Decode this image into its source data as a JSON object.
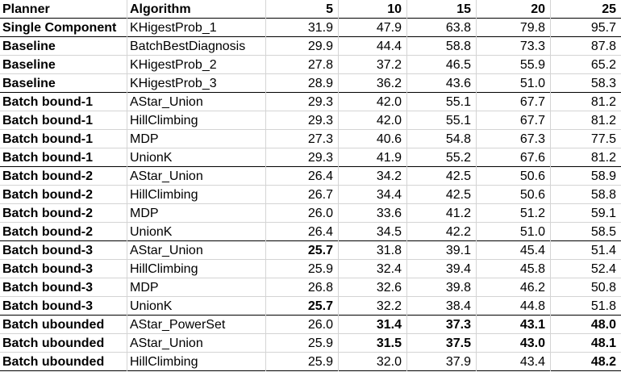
{
  "headers": [
    "Planner",
    "Algorithm",
    "5",
    "10",
    "15",
    "20",
    "25"
  ],
  "rows": [
    {
      "planner": "Single Component",
      "algorithm": "KHigestProb_1",
      "values": [
        "31.9",
        "47.9",
        "63.8",
        "79.8",
        "95.7"
      ],
      "bold": [
        false,
        false,
        false,
        false,
        false
      ]
    },
    {
      "planner": "Baseline",
      "algorithm": "BatchBestDiagnosis",
      "values": [
        "29.9",
        "44.4",
        "58.8",
        "73.3",
        "87.8"
      ],
      "bold": [
        false,
        false,
        false,
        false,
        false
      ]
    },
    {
      "planner": "Baseline",
      "algorithm": "KHigestProb_2",
      "values": [
        "27.8",
        "37.2",
        "46.5",
        "55.9",
        "65.2"
      ],
      "bold": [
        false,
        false,
        false,
        false,
        false
      ]
    },
    {
      "planner": "Baseline",
      "algorithm": "KHigestProb_3",
      "values": [
        "28.9",
        "36.2",
        "43.6",
        "51.0",
        "58.3"
      ],
      "bold": [
        false,
        false,
        false,
        false,
        false
      ]
    },
    {
      "planner": "Batch bound-1",
      "algorithm": "AStar_Union",
      "values": [
        "29.3",
        "42.0",
        "55.1",
        "67.7",
        "81.2"
      ],
      "bold": [
        false,
        false,
        false,
        false,
        false
      ]
    },
    {
      "planner": "Batch bound-1",
      "algorithm": "HillClimbing",
      "values": [
        "29.3",
        "42.0",
        "55.1",
        "67.7",
        "81.2"
      ],
      "bold": [
        false,
        false,
        false,
        false,
        false
      ]
    },
    {
      "planner": "Batch bound-1",
      "algorithm": "MDP",
      "values": [
        "27.3",
        "40.6",
        "54.8",
        "67.3",
        "77.5"
      ],
      "bold": [
        false,
        false,
        false,
        false,
        false
      ]
    },
    {
      "planner": "Batch bound-1",
      "algorithm": "UnionK",
      "values": [
        "29.3",
        "41.9",
        "55.2",
        "67.6",
        "81.2"
      ],
      "bold": [
        false,
        false,
        false,
        false,
        false
      ]
    },
    {
      "planner": "Batch bound-2",
      "algorithm": "AStar_Union",
      "values": [
        "26.4",
        "34.2",
        "42.5",
        "50.6",
        "58.9"
      ],
      "bold": [
        false,
        false,
        false,
        false,
        false
      ]
    },
    {
      "planner": "Batch bound-2",
      "algorithm": "HillClimbing",
      "values": [
        "26.7",
        "34.4",
        "42.5",
        "50.6",
        "58.8"
      ],
      "bold": [
        false,
        false,
        false,
        false,
        false
      ]
    },
    {
      "planner": "Batch bound-2",
      "algorithm": "MDP",
      "values": [
        "26.0",
        "33.6",
        "41.2",
        "51.2",
        "59.1"
      ],
      "bold": [
        false,
        false,
        false,
        false,
        false
      ]
    },
    {
      "planner": "Batch bound-2",
      "algorithm": "UnionK",
      "values": [
        "26.4",
        "34.5",
        "42.2",
        "51.0",
        "58.5"
      ],
      "bold": [
        false,
        false,
        false,
        false,
        false
      ]
    },
    {
      "planner": "Batch bound-3",
      "algorithm": "AStar_Union",
      "values": [
        "25.7",
        "31.8",
        "39.1",
        "45.4",
        "51.4"
      ],
      "bold": [
        true,
        false,
        false,
        false,
        false
      ]
    },
    {
      "planner": "Batch bound-3",
      "algorithm": "HillClimbing",
      "values": [
        "25.9",
        "32.4",
        "39.4",
        "45.8",
        "52.4"
      ],
      "bold": [
        false,
        false,
        false,
        false,
        false
      ]
    },
    {
      "planner": "Batch bound-3",
      "algorithm": "MDP",
      "values": [
        "26.8",
        "32.6",
        "39.8",
        "46.2",
        "50.8"
      ],
      "bold": [
        false,
        false,
        false,
        false,
        false
      ]
    },
    {
      "planner": "Batch bound-3",
      "algorithm": "UnionK",
      "values": [
        "25.7",
        "32.2",
        "38.4",
        "44.8",
        "51.8"
      ],
      "bold": [
        true,
        false,
        false,
        false,
        false
      ]
    },
    {
      "planner": "Batch ubounded",
      "algorithm": "AStar_PowerSet",
      "values": [
        "26.0",
        "31.4",
        "37.3",
        "43.1",
        "48.0"
      ],
      "bold": [
        false,
        true,
        true,
        true,
        true
      ]
    },
    {
      "planner": "Batch ubounded",
      "algorithm": "AStar_Union",
      "values": [
        "25.9",
        "31.5",
        "37.5",
        "43.0",
        "48.1"
      ],
      "bold": [
        false,
        true,
        true,
        true,
        true
      ]
    },
    {
      "planner": "Batch ubounded",
      "algorithm": "HillClimbing",
      "values": [
        "25.9",
        "32.0",
        "37.9",
        "43.4",
        "48.2"
      ],
      "bold": [
        false,
        false,
        false,
        false,
        true
      ]
    }
  ]
}
